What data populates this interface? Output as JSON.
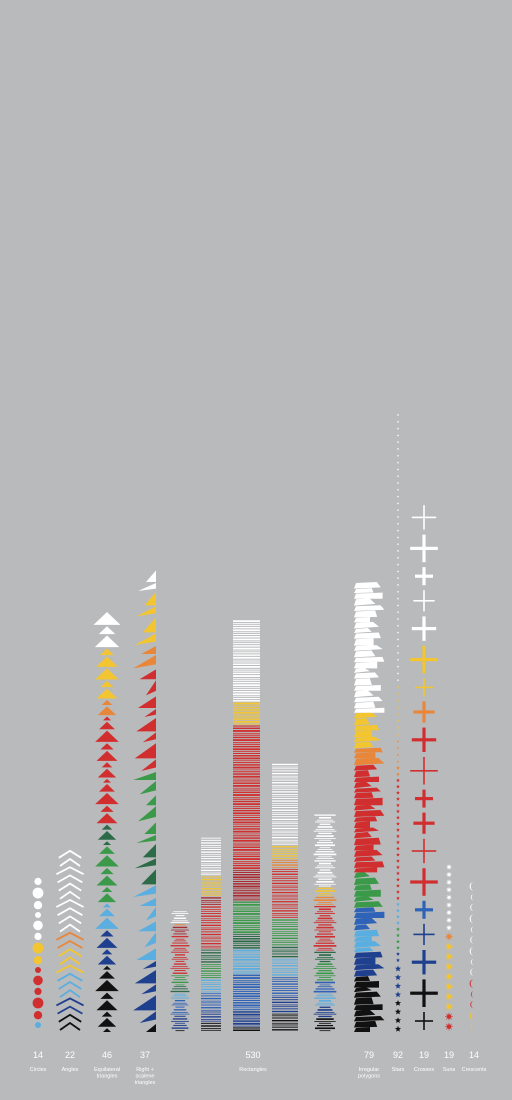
{
  "chart_data": {
    "type": "bar",
    "title": "",
    "xlabel": "",
    "ylabel": "",
    "categories": [
      {
        "id": "circles",
        "count": "14",
        "label": [
          "Circles"
        ]
      },
      {
        "id": "angles",
        "count": "22",
        "label": [
          "Angles"
        ]
      },
      {
        "id": "equilateral-triangles",
        "count": "46",
        "label": [
          "Equilateral",
          "triangles"
        ]
      },
      {
        "id": "right-scalene-triangles",
        "count": "37",
        "label": [
          "Right +",
          "scalene",
          "triangles"
        ]
      },
      {
        "id": "rectangles",
        "count": "530",
        "label": [
          "Rectangles"
        ]
      },
      {
        "id": "irregular-polygons",
        "count": "79",
        "label": [
          "Irregular",
          "polygons"
        ]
      },
      {
        "id": "stars",
        "count": "92",
        "label": [
          "Stars"
        ]
      },
      {
        "id": "crosses",
        "count": "19",
        "label": [
          "Crosses"
        ]
      },
      {
        "id": "suns",
        "count": "19",
        "label": [
          "Suns"
        ]
      },
      {
        "id": "crescents",
        "count": "14",
        "label": [
          "Crescents"
        ]
      }
    ],
    "values": [
      14,
      22,
      46,
      37,
      530,
      79,
      92,
      19,
      19,
      14
    ],
    "colors": {
      "white": "#ffffff",
      "yellow": "#f2c531",
      "orange": "#e8873a",
      "red": "#d12f2f",
      "dark_red": "#a82a30",
      "green": "#3b9a4a",
      "dark_green": "#2c6b48",
      "light_blue": "#5aaee0",
      "blue": "#2f63b8",
      "navy": "#1f3f8f",
      "black": "#111111",
      "background": "#b9babc"
    },
    "grid": false,
    "legend": "none"
  }
}
